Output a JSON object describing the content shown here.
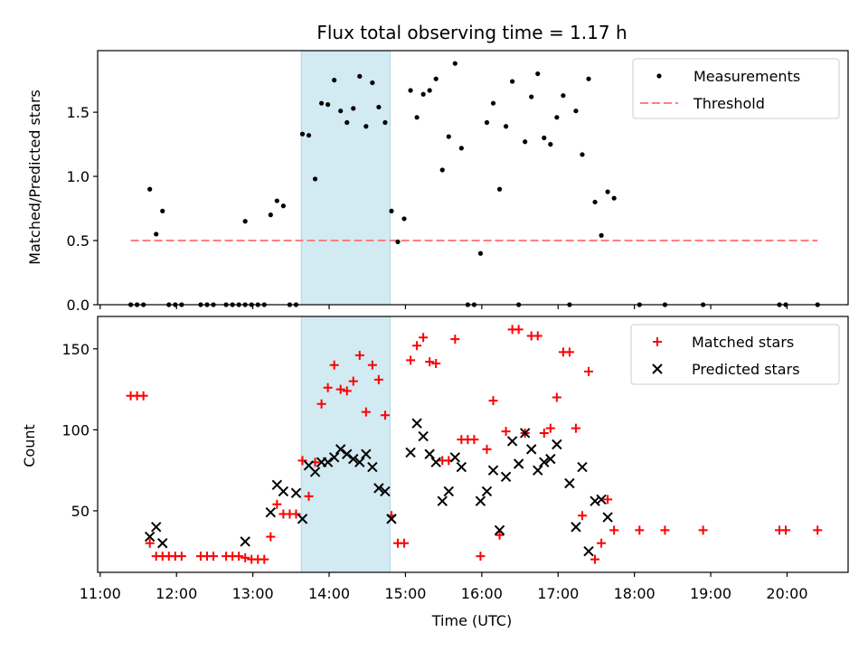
{
  "title": "Flux total observing time = 1.17 h",
  "xlabel": "Time (UTC)",
  "colors": {
    "measurement": "#000000",
    "threshold": "#ff7f7f",
    "matched": "#ff0000",
    "predicted": "#000000",
    "highlight": "#add8e6"
  },
  "x_ticks": [
    "11:00",
    "12:00",
    "13:00",
    "14:00",
    "15:00",
    "16:00",
    "17:00",
    "18:00",
    "19:00",
    "20:00"
  ],
  "chart_data": [
    {
      "type": "scatter",
      "title": "Flux total observing time = 1.17 h",
      "ylabel": "Matched/Predicted stars",
      "xlim": [
        "10:58",
        "20:48"
      ],
      "ylim": [
        0,
        1.98
      ],
      "y_ticks": [
        "0.0",
        "0.5",
        "1.0",
        "1.5"
      ],
      "y_tick_values": [
        0,
        0.5,
        1.0,
        1.5
      ],
      "highlight_span": [
        "13:38",
        "14:48"
      ],
      "legend": {
        "position": "top-right",
        "entries": [
          "Measurements",
          "Threshold"
        ]
      },
      "threshold": {
        "name": "Threshold",
        "x": [
          "11:24",
          "20:24"
        ],
        "y": 0.5
      },
      "series": [
        {
          "name": "Measurements",
          "marker": "dot",
          "points": [
            [
              "11:24",
              0
            ],
            [
              "11:29",
              0
            ],
            [
              "11:34",
              0
            ],
            [
              "11:39",
              0.9
            ],
            [
              "11:44",
              0.55
            ],
            [
              "11:49",
              0.73
            ],
            [
              "11:54",
              0
            ],
            [
              "11:59",
              0
            ],
            [
              "12:04",
              0
            ],
            [
              "12:19",
              0
            ],
            [
              "12:24",
              0
            ],
            [
              "12:29",
              0
            ],
            [
              "12:39",
              0
            ],
            [
              "12:44",
              0
            ],
            [
              "12:49",
              0
            ],
            [
              "12:54",
              0
            ],
            [
              "12:54",
              0.65
            ],
            [
              "12:59",
              0
            ],
            [
              "13:04",
              0
            ],
            [
              "13:09",
              0
            ],
            [
              "13:14",
              0.7
            ],
            [
              "13:19",
              0.81
            ],
            [
              "13:24",
              0.77
            ],
            [
              "13:29",
              0
            ],
            [
              "13:34",
              0
            ],
            [
              "13:39",
              1.33
            ],
            [
              "13:44",
              1.32
            ],
            [
              "13:49",
              0.98
            ],
            [
              "13:54",
              1.57
            ],
            [
              "13:59",
              1.56
            ],
            [
              "14:04",
              1.75
            ],
            [
              "14:09",
              1.51
            ],
            [
              "14:14",
              1.42
            ],
            [
              "14:19",
              1.53
            ],
            [
              "14:24",
              1.78
            ],
            [
              "14:29",
              1.39
            ],
            [
              "14:34",
              1.73
            ],
            [
              "14:39",
              1.54
            ],
            [
              "14:44",
              1.42
            ],
            [
              "14:49",
              0.73
            ],
            [
              "14:54",
              0.49
            ],
            [
              "14:59",
              0.67
            ],
            [
              "15:04",
              1.67
            ],
            [
              "15:09",
              1.46
            ],
            [
              "15:14",
              1.64
            ],
            [
              "15:19",
              1.67
            ],
            [
              "15:24",
              1.76
            ],
            [
              "15:29",
              1.05
            ],
            [
              "15:34",
              1.31
            ],
            [
              "15:39",
              1.88
            ],
            [
              "15:44",
              1.22
            ],
            [
              "15:49",
              0
            ],
            [
              "15:54",
              0
            ],
            [
              "15:59",
              0.4
            ],
            [
              "16:04",
              1.42
            ],
            [
              "16:09",
              1.57
            ],
            [
              "16:14",
              0.9
            ],
            [
              "16:19",
              1.39
            ],
            [
              "16:24",
              1.74
            ],
            [
              "16:29",
              0
            ],
            [
              "16:34",
              1.27
            ],
            [
              "16:39",
              1.62
            ],
            [
              "16:44",
              1.8
            ],
            [
              "16:49",
              1.3
            ],
            [
              "16:54",
              1.25
            ],
            [
              "16:59",
              1.46
            ],
            [
              "17:04",
              1.63
            ],
            [
              "17:09",
              0
            ],
            [
              "17:14",
              1.51
            ],
            [
              "17:19",
              1.17
            ],
            [
              "17:24",
              1.76
            ],
            [
              "17:29",
              0.8
            ],
            [
              "17:34",
              0.54
            ],
            [
              "17:39",
              0.88
            ],
            [
              "17:44",
              0.83
            ],
            [
              "18:04",
              0
            ],
            [
              "18:24",
              0
            ],
            [
              "18:54",
              0
            ],
            [
              "19:54",
              0
            ],
            [
              "19:59",
              0
            ],
            [
              "20:24",
              0
            ]
          ]
        }
      ]
    },
    {
      "type": "scatter",
      "ylabel": "Count",
      "xlabel": "Time (UTC)",
      "xlim": [
        "10:58",
        "20:48"
      ],
      "ylim": [
        12,
        170
      ],
      "y_ticks": [
        "50",
        "100",
        "150"
      ],
      "y_tick_values": [
        50,
        100,
        150
      ],
      "highlight_span": [
        "13:38",
        "14:48"
      ],
      "legend": {
        "position": "top-right",
        "entries": [
          "Matched stars",
          "Predicted stars"
        ]
      },
      "series": [
        {
          "name": "Matched stars",
          "marker": "plus",
          "points": [
            [
              "11:24",
              121
            ],
            [
              "11:29",
              121
            ],
            [
              "11:34",
              121
            ],
            [
              "11:39",
              30
            ],
            [
              "11:44",
              22
            ],
            [
              "11:49",
              22
            ],
            [
              "11:54",
              22
            ],
            [
              "11:59",
              22
            ],
            [
              "12:04",
              22
            ],
            [
              "12:19",
              22
            ],
            [
              "12:24",
              22
            ],
            [
              "12:29",
              22
            ],
            [
              "12:39",
              22
            ],
            [
              "12:44",
              22
            ],
            [
              "12:49",
              22
            ],
            [
              "12:54",
              21
            ],
            [
              "12:59",
              20
            ],
            [
              "13:04",
              20
            ],
            [
              "13:09",
              20
            ],
            [
              "13:14",
              34
            ],
            [
              "13:19",
              54
            ],
            [
              "13:24",
              48
            ],
            [
              "13:29",
              48
            ],
            [
              "13:34",
              48
            ],
            [
              "13:39",
              81
            ],
            [
              "13:44",
              59
            ],
            [
              "13:49",
              80
            ],
            [
              "13:54",
              116
            ],
            [
              "13:59",
              126
            ],
            [
              "14:04",
              140
            ],
            [
              "14:09",
              125
            ],
            [
              "14:14",
              124
            ],
            [
              "14:19",
              130
            ],
            [
              "14:24",
              146
            ],
            [
              "14:29",
              111
            ],
            [
              "14:34",
              140
            ],
            [
              "14:39",
              131
            ],
            [
              "14:44",
              109
            ],
            [
              "14:49",
              47
            ],
            [
              "14:54",
              30
            ],
            [
              "14:59",
              30
            ],
            [
              "15:04",
              143
            ],
            [
              "15:09",
              152
            ],
            [
              "15:14",
              157
            ],
            [
              "15:19",
              142
            ],
            [
              "15:24",
              141
            ],
            [
              "15:29",
              81
            ],
            [
              "15:34",
              81
            ],
            [
              "15:39",
              156
            ],
            [
              "15:44",
              94
            ],
            [
              "15:49",
              94
            ],
            [
              "15:54",
              94
            ],
            [
              "15:59",
              22
            ],
            [
              "16:04",
              88
            ],
            [
              "16:09",
              118
            ],
            [
              "16:14",
              35
            ],
            [
              "16:19",
              99
            ],
            [
              "16:24",
              162
            ],
            [
              "16:29",
              162
            ],
            [
              "16:34",
              98
            ],
            [
              "16:39",
              158
            ],
            [
              "16:44",
              158
            ],
            [
              "16:49",
              98
            ],
            [
              "16:54",
              101
            ],
            [
              "16:59",
              120
            ],
            [
              "17:04",
              148
            ],
            [
              "17:09",
              148
            ],
            [
              "17:14",
              101
            ],
            [
              "17:19",
              47
            ],
            [
              "17:24",
              136
            ],
            [
              "17:29",
              20
            ],
            [
              "17:34",
              30
            ],
            [
              "17:39",
              57
            ],
            [
              "17:44",
              38
            ],
            [
              "18:04",
              38
            ],
            [
              "18:24",
              38
            ],
            [
              "18:54",
              38
            ],
            [
              "19:54",
              38
            ],
            [
              "19:59",
              38
            ],
            [
              "20:24",
              38
            ]
          ]
        },
        {
          "name": "Predicted stars",
          "marker": "x",
          "points": [
            [
              "11:39",
              34
            ],
            [
              "11:44",
              40
            ],
            [
              "11:49",
              30
            ],
            [
              "12:54",
              31
            ],
            [
              "13:14",
              49
            ],
            [
              "13:19",
              66
            ],
            [
              "13:24",
              62
            ],
            [
              "13:34",
              61
            ],
            [
              "13:39",
              45
            ],
            [
              "13:44",
              78
            ],
            [
              "13:49",
              74
            ],
            [
              "13:54",
              80
            ],
            [
              "13:59",
              80
            ],
            [
              "14:04",
              83
            ],
            [
              "14:09",
              88
            ],
            [
              "14:14",
              85
            ],
            [
              "14:19",
              82
            ],
            [
              "14:24",
              80
            ],
            [
              "14:29",
              85
            ],
            [
              "14:34",
              77
            ],
            [
              "14:39",
              64
            ],
            [
              "14:44",
              62
            ],
            [
              "14:49",
              45
            ],
            [
              "15:04",
              86
            ],
            [
              "15:09",
              104
            ],
            [
              "15:14",
              96
            ],
            [
              "15:19",
              85
            ],
            [
              "15:24",
              80
            ],
            [
              "15:29",
              56
            ],
            [
              "15:34",
              62
            ],
            [
              "15:39",
              83
            ],
            [
              "15:44",
              77
            ],
            [
              "15:59",
              56
            ],
            [
              "16:04",
              62
            ],
            [
              "16:09",
              75
            ],
            [
              "16:14",
              38
            ],
            [
              "16:19",
              71
            ],
            [
              "16:24",
              93
            ],
            [
              "16:29",
              79
            ],
            [
              "16:34",
              98
            ],
            [
              "16:39",
              88
            ],
            [
              "16:44",
              75
            ],
            [
              "16:49",
              80
            ],
            [
              "16:54",
              82
            ],
            [
              "16:59",
              91
            ],
            [
              "17:09",
              67
            ],
            [
              "17:14",
              40
            ],
            [
              "17:19",
              77
            ],
            [
              "17:24",
              25
            ],
            [
              "17:29",
              56
            ],
            [
              "17:34",
              57
            ],
            [
              "17:39",
              46
            ]
          ]
        }
      ]
    }
  ]
}
